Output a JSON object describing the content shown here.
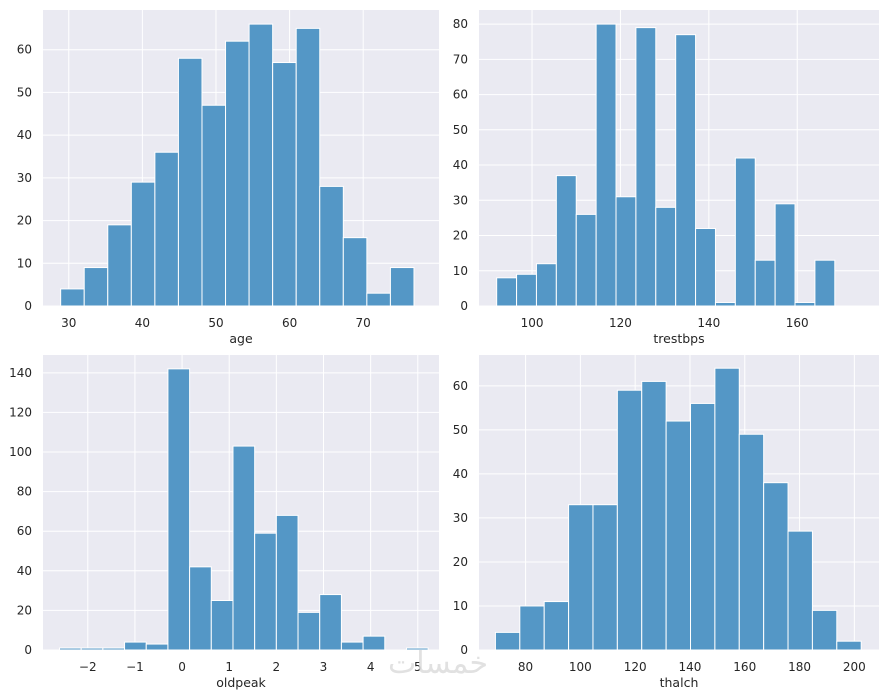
{
  "watermark": "خمسات",
  "chart_data": [
    {
      "type": "histogram",
      "xlabel": "age",
      "ylabel": "",
      "bin_start": 28.9,
      "bin_width": 3.2,
      "counts": [
        4,
        9,
        19,
        29,
        36,
        58,
        47,
        62,
        66,
        57,
        65,
        28,
        16,
        3,
        9
      ],
      "xlim": [
        26.5,
        80.3
      ],
      "ylim": [
        0,
        69.3
      ],
      "xticks": [
        30,
        40,
        50,
        60,
        70
      ],
      "yticks": [
        0,
        10,
        20,
        30,
        40,
        50,
        60
      ],
      "bar_color": "#5497c6",
      "grid": true
    },
    {
      "type": "histogram",
      "xlabel": "trestbps",
      "ylabel": "",
      "bin_start": 92,
      "bin_width": 4.5,
      "counts": [
        8,
        9,
        12,
        37,
        26,
        80,
        31,
        79,
        28,
        77,
        22,
        1,
        42,
        13,
        29,
        1,
        13
      ],
      "xlim": [
        88,
        178.5
      ],
      "ylim": [
        0,
        84
      ],
      "xticks": [
        100,
        120,
        140,
        160
      ],
      "yticks": [
        0,
        10,
        20,
        30,
        40,
        50,
        60,
        70,
        80
      ],
      "bar_color": "#5497c6",
      "grid": true
    },
    {
      "type": "histogram",
      "xlabel": "oldpeak",
      "ylabel": "",
      "bin_start": -2.6,
      "bin_width": 0.46,
      "counts": [
        1,
        1,
        1,
        4,
        3,
        142,
        42,
        25,
        103,
        59,
        68,
        19,
        28,
        4,
        7,
        0,
        1
      ],
      "xlim": [
        -2.95,
        5.45
      ],
      "ylim": [
        0,
        149
      ],
      "xticks": [
        -2,
        -1,
        0,
        1,
        2,
        3,
        4,
        5
      ],
      "xtick_labels": [
        "−2",
        "−1",
        "0",
        "1",
        "2",
        "3",
        "4",
        "5"
      ],
      "yticks": [
        0,
        20,
        40,
        60,
        80,
        100,
        120,
        140
      ],
      "bar_color": "#5497c6",
      "grid": true
    },
    {
      "type": "histogram",
      "xlabel": "thalch",
      "ylabel": "",
      "bin_start": 69,
      "bin_width": 8.9,
      "counts": [
        4,
        10,
        11,
        33,
        33,
        59,
        61,
        52,
        56,
        64,
        49,
        38,
        27,
        9,
        2
      ],
      "xlim": [
        63,
        209
      ],
      "ylim": [
        0,
        67
      ],
      "xticks": [
        80,
        100,
        120,
        140,
        160,
        180,
        200
      ],
      "yticks": [
        0,
        10,
        20,
        30,
        40,
        50,
        60
      ],
      "bar_color": "#5497c6",
      "grid": true
    }
  ]
}
